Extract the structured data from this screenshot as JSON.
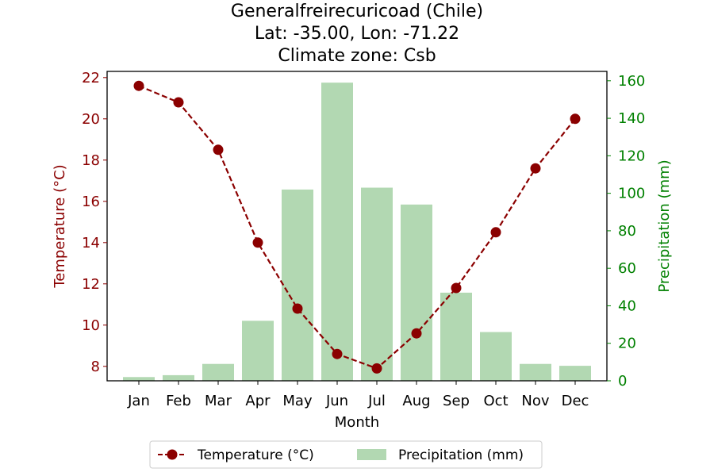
{
  "chart_data": {
    "type": "bar",
    "title": "Generalfreirecuricoad (Chile)",
    "subtitle_lines": [
      "Lat: -35.00, Lon: -71.22",
      "Climate zone: Csb"
    ],
    "xlabel": "Month",
    "ylabel_left": "Temperature (°C)",
    "ylabel_right": "Precipitation (mm)",
    "categories": [
      "Jan",
      "Feb",
      "Mar",
      "Apr",
      "May",
      "Jun",
      "Jul",
      "Aug",
      "Sep",
      "Oct",
      "Nov",
      "Dec"
    ],
    "temperature": {
      "name": "Temperature (°C)",
      "type": "line",
      "color": "#8b0000",
      "values": [
        21.6,
        20.8,
        18.5,
        14.0,
        10.8,
        8.6,
        7.9,
        9.6,
        11.8,
        14.5,
        17.6,
        20.0
      ],
      "ylim": [
        7.3,
        22.3
      ],
      "ticks": [
        8,
        10,
        12,
        14,
        16,
        18,
        20,
        22
      ]
    },
    "precipitation": {
      "name": "Precipitation (mm)",
      "type": "bar",
      "color": "#b2d8b2",
      "values": [
        2,
        3,
        9,
        32,
        102,
        159,
        103,
        94,
        47,
        26,
        9,
        8
      ],
      "ylim": [
        0,
        165
      ],
      "ticks": [
        0,
        20,
        40,
        60,
        80,
        100,
        120,
        140,
        160
      ]
    },
    "left_axis_color": "#8b0000",
    "right_axis_color": "#008000",
    "legend_position": "bottom-center",
    "grid": false
  }
}
